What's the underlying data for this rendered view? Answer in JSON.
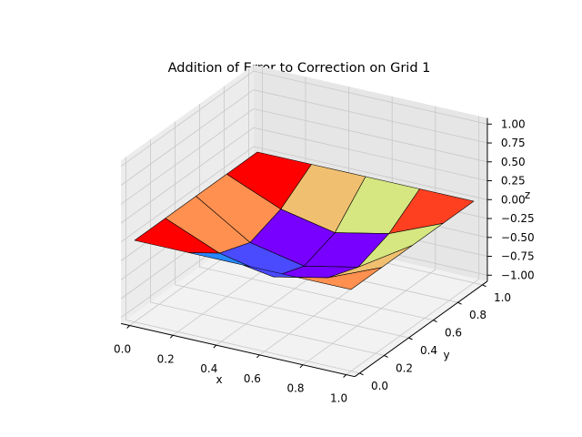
{
  "chart_data": {
    "type": "surface",
    "title": "Addition of Error to Correction on Grid 1",
    "xlabel": "x",
    "ylabel": "y",
    "zlabel": "z",
    "xlim": [
      0,
      1
    ],
    "ylim": [
      0,
      1
    ],
    "zlim": [
      -1,
      1
    ],
    "grid": true,
    "colormap": "rainbow",
    "x_ticks": [
      "0.0",
      "0.2",
      "0.4",
      "0.6",
      "0.8",
      "1.0"
    ],
    "y_ticks": [
      "0.0",
      "0.2",
      "0.4",
      "0.6",
      "0.8",
      "1.0"
    ],
    "z_ticks": [
      "-1.00",
      "-0.75",
      "-0.50",
      "-0.25",
      "0.00",
      "0.25",
      "0.50",
      "0.75",
      "1.00"
    ],
    "x": [
      0,
      0.25,
      0.5,
      0.75,
      1
    ],
    "y": [
      0,
      0.25,
      0.5,
      0.75,
      1
    ],
    "z": [
      [
        0.0,
        0.0,
        0.0,
        0.0,
        0.0
      ],
      [
        0.0,
        -0.3,
        -0.45,
        -0.3,
        0.0
      ],
      [
        0.0,
        -0.45,
        -0.6,
        -0.45,
        0.0
      ],
      [
        0.0,
        -0.3,
        -0.45,
        -0.3,
        0.0
      ],
      [
        0.0,
        0.0,
        0.0,
        0.0,
        0.0
      ]
    ],
    "face_colors": [
      [
        "#ff0000",
        "#ff9050",
        "#ff9050",
        "#ff0000"
      ],
      [
        "#2888ff",
        "#4a4aff",
        "#7800ff",
        "#f0c070"
      ],
      [
        "#4a4aff",
        "#7800ff",
        "#7800ff",
        "#d6e680"
      ],
      [
        "#ff9050",
        "#f0c070",
        "#d6e680",
        "#ff4020"
      ]
    ]
  }
}
